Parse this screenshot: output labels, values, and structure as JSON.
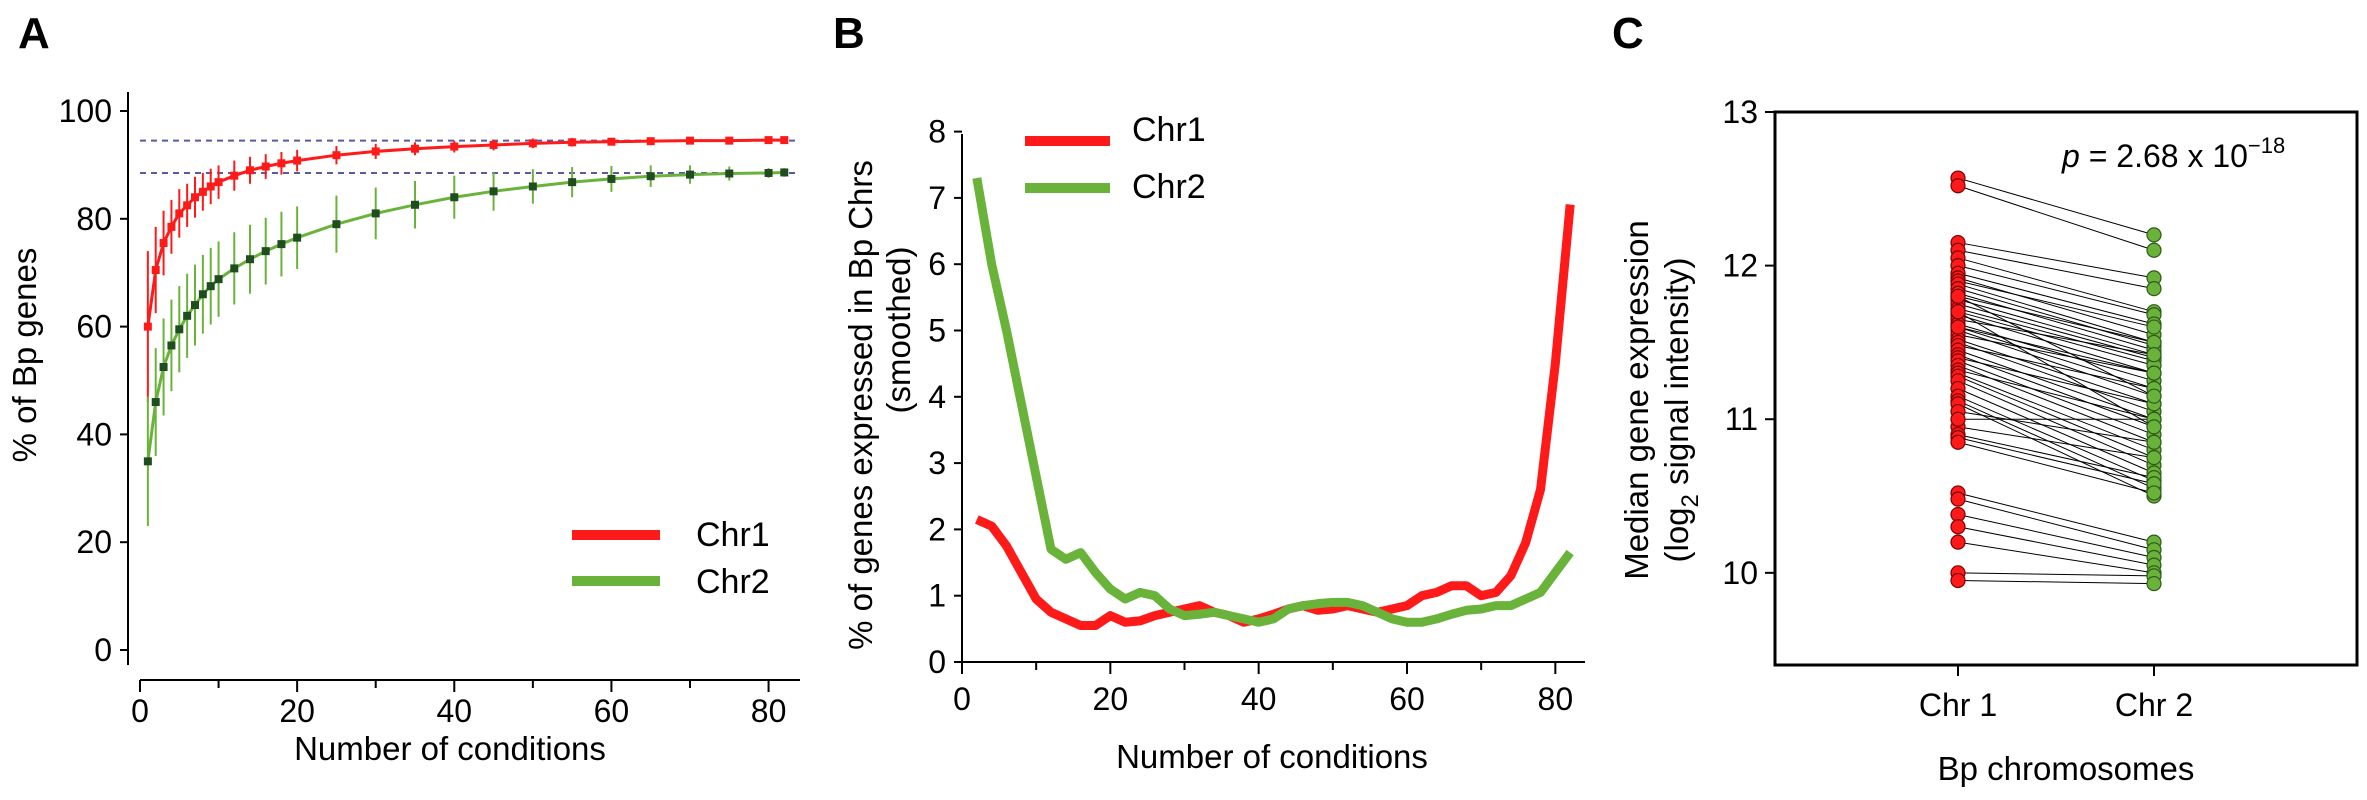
{
  "colors": {
    "chr1": "#ff1a1a",
    "chr2": "#6ab33a",
    "chr2_dark": "#1f4d1f",
    "dashed": "#5a5aa0",
    "axis": "#000000"
  },
  "chart_data": [
    {
      "panel": "A",
      "type": "line",
      "xlabel": "Number of conditions",
      "ylabel": "% of Bp genes",
      "xlim": [
        0,
        84
      ],
      "ylim": [
        0,
        100
      ],
      "xticks": [
        "0",
        "20",
        "40",
        "60",
        "80"
      ],
      "yticks": [
        "0",
        "20",
        "40",
        "60",
        "80",
        "100"
      ],
      "legend_position": "bottom-right",
      "reference_lines_y": [
        94.5,
        88.5
      ],
      "x": [
        1,
        2,
        3,
        4,
        5,
        6,
        7,
        8,
        9,
        10,
        12,
        14,
        16,
        18,
        20,
        25,
        30,
        35,
        40,
        45,
        50,
        55,
        60,
        65,
        70,
        75,
        80,
        82
      ],
      "series": [
        {
          "name": "Chr1",
          "values": [
            60,
            70.5,
            75.5,
            78.5,
            81,
            82.5,
            84,
            85,
            86,
            86.8,
            88,
            89,
            89.7,
            90.3,
            90.8,
            91.8,
            92.5,
            93,
            93.4,
            93.7,
            94,
            94.2,
            94.3,
            94.4,
            94.5,
            94.5,
            94.6,
            94.6
          ],
          "errors": [
            14,
            8,
            6,
            5,
            4.5,
            4,
            3.8,
            3.5,
            3.3,
            3.1,
            2.8,
            2.5,
            2.3,
            2.1,
            2,
            1.7,
            1.4,
            1.2,
            1.1,
            1,
            0.9,
            0.8,
            0.7,
            0.6,
            0.5,
            0.5,
            0.4,
            0.4
          ]
        },
        {
          "name": "Chr2",
          "values": [
            35,
            46,
            52.5,
            56.5,
            59.5,
            62,
            64,
            66,
            67.5,
            68.8,
            70.8,
            72.5,
            74,
            75.3,
            76.5,
            79,
            81,
            82.6,
            84,
            85.1,
            86,
            86.8,
            87.4,
            87.9,
            88.2,
            88.4,
            88.5,
            88.6
          ],
          "errors": [
            12,
            10,
            9,
            8.5,
            8,
            7.8,
            7.5,
            7.3,
            7.1,
            7,
            6.7,
            6.4,
            6.2,
            6,
            5.8,
            5.3,
            4.8,
            4.4,
            4,
            3.6,
            3.2,
            2.8,
            2.4,
            2,
            1.7,
            1.3,
            0.9,
            0.8
          ]
        }
      ]
    },
    {
      "panel": "B",
      "type": "line",
      "xlabel": "Number of conditions",
      "ylabel": "% of genes expressed in Bp Chrs",
      "ylabel2": "(smoothed)",
      "xlim": [
        0,
        84
      ],
      "ylim": [
        0,
        8
      ],
      "xticks": [
        "0",
        "20",
        "40",
        "60",
        "80"
      ],
      "yticks": [
        "0",
        "1",
        "2",
        "3",
        "4",
        "5",
        "6",
        "7",
        "8"
      ],
      "legend_position": "top-left",
      "x": [
        2,
        4,
        6,
        8,
        10,
        12,
        14,
        16,
        18,
        20,
        22,
        24,
        26,
        28,
        30,
        32,
        34,
        36,
        38,
        40,
        42,
        44,
        46,
        48,
        50,
        52,
        54,
        56,
        58,
        60,
        62,
        64,
        66,
        68,
        70,
        72,
        74,
        76,
        78,
        80,
        82
      ],
      "series": [
        {
          "name": "Chr1",
          "values": [
            2.15,
            2.05,
            1.75,
            1.35,
            0.95,
            0.75,
            0.65,
            0.55,
            0.55,
            0.7,
            0.6,
            0.62,
            0.7,
            0.75,
            0.8,
            0.85,
            0.75,
            0.7,
            0.6,
            0.65,
            0.72,
            0.8,
            0.85,
            0.78,
            0.8,
            0.85,
            0.8,
            0.75,
            0.8,
            0.85,
            1.0,
            1.05,
            1.15,
            1.15,
            1.0,
            1.05,
            1.3,
            1.8,
            2.6,
            4.5,
            6.9
          ]
        },
        {
          "name": "Chr2",
          "values": [
            7.3,
            6.0,
            5.0,
            3.9,
            2.8,
            1.7,
            1.55,
            1.65,
            1.35,
            1.1,
            0.95,
            1.05,
            1.0,
            0.8,
            0.7,
            0.72,
            0.75,
            0.7,
            0.65,
            0.6,
            0.65,
            0.8,
            0.85,
            0.88,
            0.9,
            0.9,
            0.85,
            0.75,
            0.65,
            0.6,
            0.6,
            0.65,
            0.72,
            0.78,
            0.8,
            0.85,
            0.85,
            0.95,
            1.05,
            1.35,
            1.65
          ]
        }
      ]
    },
    {
      "panel": "C",
      "type": "scatter",
      "xlabel": "Bp chromosomes",
      "ylabel": "Median gene expression",
      "ylabel2_prefix": "(log",
      "ylabel2_sub": "2",
      "ylabel2_suffix": " signal intensity)",
      "categories": [
        "Chr 1",
        "Chr 2"
      ],
      "ylim": [
        9.4,
        13
      ],
      "yticks": [
        "10",
        "11",
        "12",
        "13"
      ],
      "annotation_p": "p",
      "annotation_eq": " = 2.68 x 10",
      "annotation_exp": "−18",
      "pairs": [
        [
          12.57,
          12.2
        ],
        [
          12.52,
          12.1
        ],
        [
          12.15,
          11.92
        ],
        [
          12.1,
          11.85
        ],
        [
          12.05,
          11.7
        ],
        [
          12.0,
          11.68
        ],
        [
          11.95,
          11.62
        ],
        [
          11.92,
          11.55
        ],
        [
          11.9,
          11.6
        ],
        [
          11.88,
          11.5
        ],
        [
          11.85,
          11.48
        ],
        [
          11.82,
          11.45
        ],
        [
          11.8,
          11.5
        ],
        [
          11.78,
          11.42
        ],
        [
          11.75,
          11.4
        ],
        [
          11.72,
          11.38
        ],
        [
          11.7,
          11.35
        ],
        [
          11.68,
          11.3
        ],
        [
          11.65,
          11.42
        ],
        [
          11.62,
          11.25
        ],
        [
          11.6,
          11.2
        ],
        [
          11.58,
          11.15
        ],
        [
          11.55,
          11.3
        ],
        [
          11.52,
          11.1
        ],
        [
          11.5,
          11.05
        ],
        [
          11.48,
          11.2
        ],
        [
          11.45,
          11.0
        ],
        [
          11.42,
          10.95
        ],
        [
          11.4,
          11.1
        ],
        [
          11.38,
          10.9
        ],
        [
          11.35,
          10.85
        ],
        [
          11.32,
          11.0
        ],
        [
          11.3,
          10.8
        ],
        [
          11.28,
          10.75
        ],
        [
          11.25,
          10.7
        ],
        [
          11.2,
          10.65
        ],
        [
          11.15,
          10.6
        ],
        [
          11.12,
          10.55
        ],
        [
          11.1,
          10.5
        ],
        [
          11.05,
          10.85
        ],
        [
          10.95,
          10.75
        ],
        [
          10.9,
          10.62
        ],
        [
          10.88,
          10.58
        ],
        [
          10.85,
          10.52
        ],
        [
          10.52,
          10.2
        ],
        [
          10.48,
          10.15
        ],
        [
          10.38,
          10.1
        ],
        [
          10.3,
          10.05
        ],
        [
          10.2,
          10.0
        ],
        [
          10.0,
          9.98
        ],
        [
          9.95,
          9.93
        ],
        [
          11.0,
          11.0
        ],
        [
          11.6,
          11.3
        ],
        [
          11.7,
          10.95
        ],
        [
          11.8,
          11.15
        ]
      ]
    }
  ],
  "panel_letters": {
    "a": "A",
    "b": "B",
    "c": "C"
  },
  "legend": {
    "a": [
      {
        "label": "Chr1",
        "color": "#ff1a1a"
      },
      {
        "label": "Chr2",
        "color": "#6ab33a"
      }
    ],
    "b": [
      {
        "label": "Chr1",
        "color": "#ff1a1a"
      },
      {
        "label": "Chr2",
        "color": "#6ab33a"
      }
    ]
  }
}
